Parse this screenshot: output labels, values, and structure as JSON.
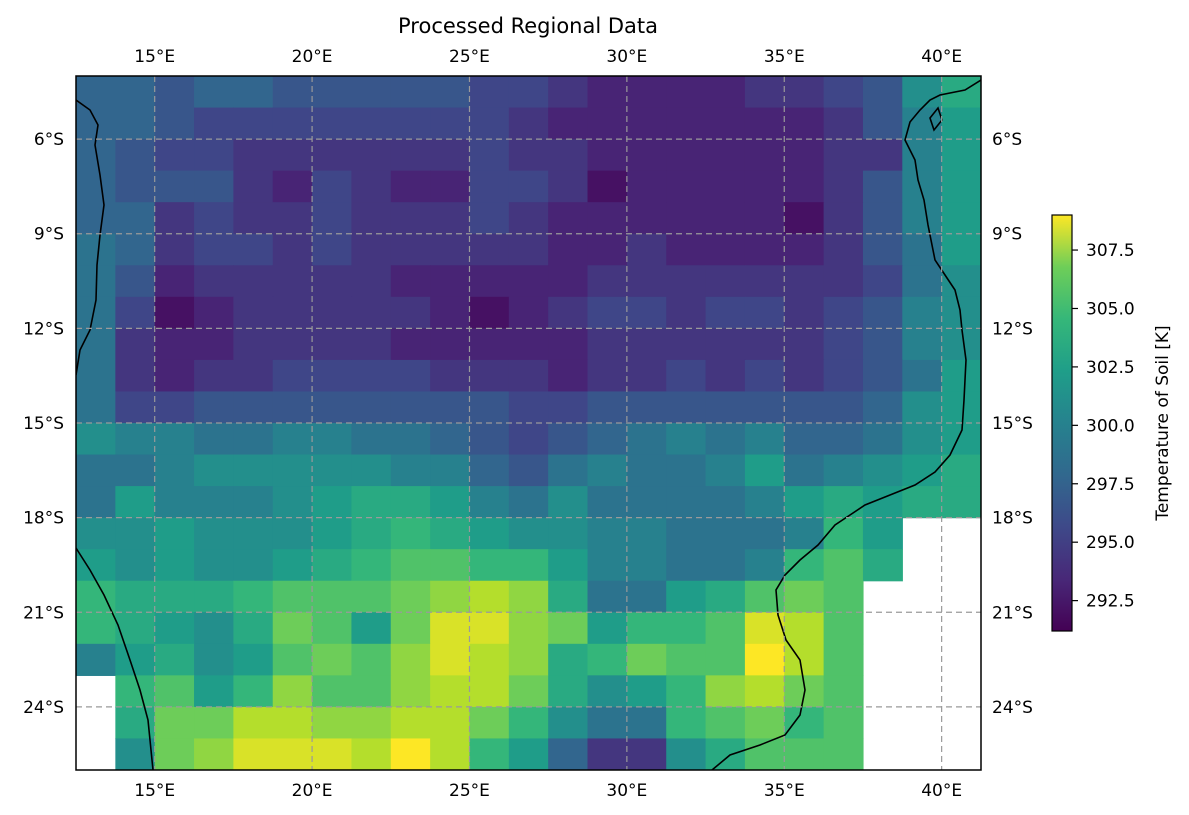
{
  "title": "Processed Regional Data",
  "colorbar": {
    "label": "Temperature of Soil [K]",
    "vmin": 291.2,
    "vmax": 309.0,
    "ticks": [
      "292.5",
      "295.0",
      "297.5",
      "300.0",
      "302.5",
      "305.0",
      "307.5"
    ],
    "tick_values": [
      292.5,
      295.0,
      297.5,
      300.0,
      302.5,
      305.0,
      307.5
    ]
  },
  "map": {
    "lon_range": [
      12.5,
      41.25
    ],
    "lat_range": [
      -26.0,
      -4.0
    ],
    "lon_ticks": [
      {
        "value": 15,
        "label": "15°E"
      },
      {
        "value": 20,
        "label": "20°E"
      },
      {
        "value": 25,
        "label": "25°E"
      },
      {
        "value": 30,
        "label": "30°E"
      },
      {
        "value": 35,
        "label": "35°E"
      },
      {
        "value": 40,
        "label": "40°E"
      }
    ],
    "lat_ticks": [
      {
        "value": -6,
        "label": "6°S"
      },
      {
        "value": -9,
        "label": "9°S"
      },
      {
        "value": -12,
        "label": "12°S"
      },
      {
        "value": -15,
        "label": "15°S"
      },
      {
        "value": -18,
        "label": "18°S"
      },
      {
        "value": -21,
        "label": "21°S"
      },
      {
        "value": -24,
        "label": "24°S"
      }
    ],
    "grid": true,
    "grid_style": "dashed",
    "coastlines": true,
    "colormap": "viridis"
  },
  "chart_data": {
    "type": "heatmap",
    "title": "Processed Regional Data",
    "cell_lon_size": 1.25,
    "cell_lat_size": 1.0,
    "lon_start": 12.5,
    "lat_start": -4.0,
    "units": "K",
    "rows": [
      [
        297,
        297,
        296,
        297,
        297,
        296,
        296,
        296,
        296,
        296,
        295,
        295,
        294,
        293,
        293,
        293,
        293,
        294,
        294,
        295,
        296,
        300,
        302,
        304
      ],
      [
        297,
        297,
        296,
        295,
        295,
        295,
        295,
        295,
        295,
        295,
        295,
        294,
        293,
        293,
        293,
        293,
        293,
        293,
        293,
        294,
        296,
        299,
        301,
        null
      ],
      [
        297,
        296,
        295,
        295,
        294,
        294,
        294,
        294,
        294,
        294,
        295,
        294,
        294,
        293,
        293,
        293,
        293,
        293,
        293,
        294,
        294,
        299,
        301,
        null
      ],
      [
        297,
        296,
        296,
        296,
        294,
        293,
        295,
        294,
        293,
        293,
        295,
        295,
        294,
        292,
        293,
        293,
        293,
        293,
        293,
        294,
        296,
        299,
        301,
        null
      ],
      [
        297,
        297,
        294,
        295,
        294,
        294,
        295,
        294,
        294,
        294,
        295,
        294,
        293,
        293,
        293,
        293,
        293,
        293,
        292,
        294,
        296,
        299,
        301,
        null
      ],
      [
        298,
        297,
        294,
        295,
        295,
        294,
        295,
        294,
        294,
        294,
        294,
        294,
        293,
        293,
        294,
        293,
        293,
        293,
        293,
        294,
        296,
        298,
        301,
        303
      ],
      [
        298,
        296,
        293,
        294,
        294,
        294,
        294,
        294,
        293,
        293,
        293,
        293,
        293,
        294,
        294,
        294,
        294,
        294,
        294,
        294,
        295,
        298,
        300,
        304
      ],
      [
        298,
        295,
        292,
        293,
        294,
        294,
        294,
        294,
        294,
        293,
        292,
        293,
        294,
        295,
        295,
        294,
        295,
        295,
        294,
        295,
        296,
        299,
        300,
        303
      ],
      [
        298,
        294,
        293,
        293,
        294,
        294,
        294,
        294,
        293,
        293,
        293,
        293,
        293,
        294,
        294,
        294,
        294,
        294,
        294,
        295,
        296,
        299,
        300,
        303
      ],
      [
        298,
        294,
        293,
        294,
        294,
        295,
        295,
        295,
        295,
        294,
        294,
        294,
        293,
        294,
        294,
        295,
        294,
        295,
        294,
        295,
        296,
        298,
        301,
        301
      ],
      [
        298,
        295,
        295,
        296,
        296,
        296,
        296,
        296,
        296,
        296,
        296,
        295,
        295,
        296,
        296,
        296,
        296,
        296,
        296,
        296,
        297,
        300,
        301,
        302
      ],
      [
        300,
        299,
        299,
        298,
        298,
        299,
        299,
        298,
        298,
        297,
        296,
        295,
        296,
        297,
        298,
        299,
        298,
        299,
        297,
        297,
        298,
        300,
        301,
        303
      ],
      [
        298,
        298,
        299,
        300,
        300,
        300,
        300,
        300,
        299,
        299,
        297,
        296,
        298,
        299,
        298,
        298,
        299,
        301,
        298,
        299,
        300,
        301,
        302,
        305
      ],
      [
        298,
        301,
        299,
        299,
        299,
        300,
        301,
        302,
        302,
        301,
        299,
        298,
        300,
        298,
        298,
        298,
        298,
        299,
        301,
        302,
        301,
        302,
        302,
        null
      ],
      [
        300,
        300,
        301,
        300,
        300,
        300,
        301,
        302,
        303,
        302,
        301,
        300,
        300,
        299,
        299,
        298,
        298,
        298,
        299,
        303,
        301,
        null,
        null,
        null
      ],
      [
        301,
        300,
        301,
        300,
        300,
        301,
        302,
        303,
        304,
        304,
        303,
        303,
        301,
        299,
        299,
        298,
        298,
        299,
        303,
        304,
        302,
        null,
        null,
        null
      ],
      [
        303,
        302,
        302,
        302,
        303,
        304,
        304,
        304,
        305,
        306,
        307,
        306,
        302,
        298,
        298,
        301,
        302,
        304,
        305,
        304,
        null,
        null,
        null,
        null
      ],
      [
        303,
        302,
        301,
        300,
        302,
        305,
        304,
        301,
        305,
        308,
        308,
        306,
        305,
        301,
        303,
        303,
        304,
        308,
        307,
        304,
        null,
        null,
        null,
        null
      ],
      [
        299,
        301,
        302,
        300,
        301,
        304,
        305,
        304,
        306,
        308,
        307,
        306,
        302,
        303,
        305,
        304,
        304,
        309,
        307,
        304,
        null,
        null,
        null,
        null
      ],
      [
        null,
        303,
        304,
        301,
        303,
        306,
        304,
        304,
        306,
        307,
        307,
        305,
        302,
        300,
        301,
        303,
        306,
        307,
        305,
        304,
        null,
        null,
        null,
        null
      ],
      [
        null,
        302,
        305,
        305,
        307,
        307,
        306,
        306,
        307,
        307,
        305,
        303,
        300,
        298,
        298,
        303,
        304,
        305,
        303,
        304,
        null,
        null,
        null,
        null
      ],
      [
        null,
        300,
        305,
        306,
        308,
        308,
        308,
        307,
        309,
        307,
        303,
        301,
        297,
        294,
        294,
        300,
        302,
        304,
        304,
        304,
        null,
        null,
        null,
        null
      ]
    ]
  }
}
